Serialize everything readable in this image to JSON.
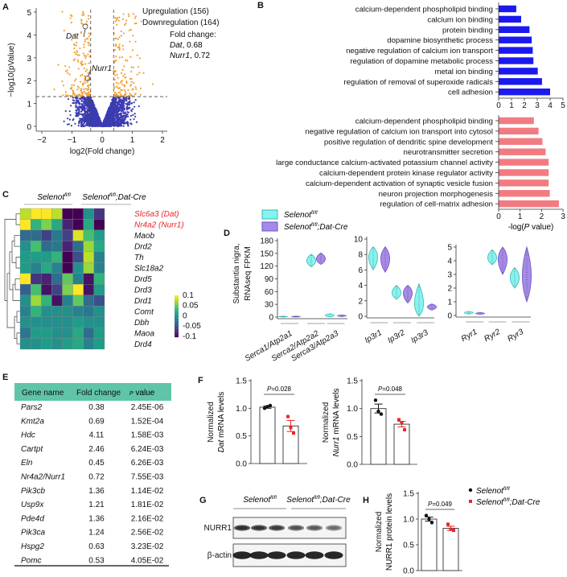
{
  "panel_labels": {
    "A": "A",
    "B": "B",
    "C": "C",
    "D": "D",
    "E": "E",
    "F": "F",
    "G": "G",
    "H": "H"
  },
  "genotypes": {
    "name": "Selenot",
    "sup": "fl/fl",
    "suffix": ";Dat-Cre"
  },
  "colors": {
    "orange": "#f5a030",
    "navy": "#3b3bb3",
    "blue_bar": "#1a1aee",
    "red_bar": "#f27b82",
    "highlight": "#e8262a",
    "cyan": "#86f3ee",
    "purple": "#a58ae8",
    "table_header": "#5fc4a8",
    "ko_point": "#e8262a"
  },
  "chart_data": [
    {
      "panel": "A",
      "type": "scatter",
      "xlabel": "log2(Fold change)",
      "ylabel": "−log10(pValue)",
      "xlim": [
        -2.2,
        2.2
      ],
      "ylim": [
        0,
        5.2
      ],
      "xtick_values": [
        -2,
        -1,
        0,
        1,
        2
      ],
      "xtick_labels": [
        "−2",
        "−1",
        "0",
        "1",
        "2"
      ],
      "ytick_values": [
        0,
        1,
        2,
        3,
        4,
        5
      ],
      "ytick_labels": [
        "0",
        "1",
        "2",
        "3",
        "4",
        "5"
      ],
      "thresholds": {
        "log2fc": [
          -0.38,
          0.38
        ],
        "neglog10p": 1.3
      },
      "legend": [
        "Upregulation (156)",
        "Downregulation (164)"
      ],
      "counts": {
        "up": 156,
        "down": 164
      },
      "fold_change_title": "Fold change:",
      "annotations": [
        {
          "gene": "Dat",
          "value": ", 0.68",
          "x": -0.56,
          "y": 4.37
        },
        {
          "gene": "Nurr1",
          "value": ", 0.72",
          "x": -0.48,
          "y": 2.1
        }
      ]
    },
    {
      "panel": "B-up",
      "type": "bar",
      "orientation": "horizontal",
      "categories": [
        "calcium-dependent phospholipid binding",
        "calcium ion binding",
        "protein binding",
        "dopamine biosynthetic process",
        "negative regulation of calcium ion transport",
        "regulation of dopamine metabolic process",
        "metal ion binding",
        "regulation of removal of superoxide radicals",
        "cell adhesion"
      ],
      "values": [
        1.37,
        1.75,
        2.4,
        2.57,
        2.65,
        2.7,
        3.04,
        3.37,
        4.0
      ],
      "xlim": [
        0,
        5
      ],
      "xtick_values": [
        0,
        1,
        2,
        3,
        4,
        5
      ],
      "xtick_labels": [
        "0",
        "1",
        "2",
        "3",
        "4",
        "5"
      ]
    },
    {
      "panel": "B-down",
      "type": "bar",
      "orientation": "horizontal",
      "categories": [
        "calcium-dependent phospholipid binding",
        "negative regulation of calcium ion transport into cytosol",
        "positive regulation of dendritic spine development",
        "neurotransmitter secretion",
        "large conductance calcium-activated potassium channel activity",
        "calcium-dependent protein kinase regulator activity",
        "calcium-dependent activation of synaptic vesicle fusion",
        "neuron projection morphogenesis",
        "regulation of cell-matrix adhesion"
      ],
      "values": [
        1.64,
        1.86,
        2.04,
        2.19,
        2.33,
        2.33,
        2.33,
        2.38,
        2.81
      ],
      "xlim": [
        0,
        3
      ],
      "xtick_values": [
        0,
        1,
        2,
        3
      ],
      "xtick_labels": [
        "0",
        "1",
        "2",
        "3"
      ],
      "xlabel_pre": "-log(",
      "xlabel_italic": "P",
      "xlabel_post": " value)"
    },
    {
      "panel": "C",
      "type": "heatmap",
      "rows": [
        "Slc6a3 (Dat)",
        "Nr4a2 (Nurr1)",
        "Maob",
        "Drd2",
        "Th",
        "Slc18a2",
        "Drd5",
        "Drd3",
        "Drd1",
        "Comt",
        "Dbh",
        "Maoa",
        "Drd4"
      ],
      "highlight_rows": [
        0,
        1
      ],
      "column_groups": [
        "Selenot fl/fl",
        "Selenot fl/fl;Dat-Cre"
      ],
      "values": [
        [
          0.08,
          0.1,
          0.1,
          0.08,
          -0.1,
          -0.1,
          0.0,
          -0.07
        ],
        [
          0.1,
          0.03,
          0.06,
          0.02,
          -0.08,
          -0.1,
          0.02,
          -0.1
        ],
        [
          -0.03,
          -0.03,
          -0.06,
          -0.02,
          -0.06,
          0.09,
          0.04,
          0.01
        ],
        [
          0.0,
          0.04,
          -0.03,
          -0.02,
          -0.08,
          -0.03,
          0.07,
          0.02
        ],
        [
          0.01,
          0.01,
          0.01,
          0.03,
          -0.1,
          -0.05,
          0.08,
          -0.01
        ],
        [
          0.01,
          -0.01,
          0.02,
          -0.01,
          -0.1,
          0.0,
          0.07,
          -0.01
        ],
        [
          0.1,
          -0.07,
          -0.08,
          -0.03,
          0.05,
          -0.01,
          -0.09,
          0.03
        ],
        [
          -0.04,
          0.04,
          -0.09,
          -0.06,
          0.06,
          0.1,
          -0.09,
          0.01
        ],
        [
          0.0,
          0.07,
          0.03,
          -0.09,
          -0.01,
          0.05,
          -0.03,
          -0.05
        ],
        [
          -0.01,
          0.03,
          0.0,
          0.0,
          0.0,
          -0.01,
          -0.02,
          0.0
        ],
        [
          0.0,
          0.0,
          0.0,
          0.0,
          0.0,
          0.01,
          0.0,
          0.0
        ],
        [
          -0.02,
          0.01,
          0.01,
          0.0,
          0.0,
          0.02,
          -0.03,
          0.01
        ],
        [
          0.0,
          0.0,
          0.01,
          0.0,
          0.01,
          0.02,
          -0.01,
          0.01
        ]
      ],
      "colorbar": {
        "min": -0.1,
        "max": 0.1,
        "tick_labels": [
          "0.1",
          "0.05",
          "0",
          "-0.05",
          "-0.1"
        ]
      }
    },
    {
      "panel": "D1",
      "type": "violin",
      "ylabel_lines": [
        "Substantia nigra,",
        "RNAseq FPKM"
      ],
      "categories": [
        "Serca1/Atp2a1",
        "Serca2/Atp2a2",
        "Serca3/Atp2a3"
      ],
      "ylim": [
        0,
        180
      ],
      "ytick_values": [
        0,
        30,
        60,
        90,
        120,
        150,
        180
      ],
      "ytick_labels": [
        "0",
        "30",
        "60",
        "90",
        "120",
        "150",
        "180"
      ],
      "series": [
        {
          "name": "Selenot fl/fl",
          "median": [
            1,
            133,
            4
          ],
          "min": [
            0,
            118,
            0
          ],
          "max": [
            2,
            148,
            8
          ]
        },
        {
          "name": "Selenot fl/fl;Dat-Cre",
          "median": [
            1,
            137,
            3
          ],
          "min": [
            0,
            124,
            1
          ],
          "max": [
            2,
            151,
            5
          ]
        }
      ]
    },
    {
      "panel": "D2",
      "type": "violin",
      "categories": [
        "Ip3r1",
        "Ip3r2",
        "Ip3r3"
      ],
      "ylim": [
        0,
        10
      ],
      "ytick_values": [
        0,
        2,
        4,
        6,
        8,
        10
      ],
      "ytick_labels": [
        "0",
        "2",
        "4",
        "6",
        "8",
        "10"
      ],
      "series": [
        {
          "name": "Selenot fl/fl",
          "median": [
            7.8,
            3.0,
            1.3
          ],
          "min": [
            6.0,
            2.2,
            0
          ],
          "max": [
            9.0,
            4.0,
            4.2
          ]
        },
        {
          "name": "Selenot fl/fl;Dat-Cre",
          "median": [
            7.5,
            3.1,
            1.2
          ],
          "min": [
            5.7,
            1.7,
            0.8
          ],
          "max": [
            9.0,
            4.0,
            1.6
          ]
        }
      ]
    },
    {
      "panel": "D3",
      "type": "violin",
      "categories": [
        "Ryr1",
        "Ryr2",
        "Ryr3"
      ],
      "ylim": [
        0,
        5
      ],
      "ytick_values": [
        0,
        1,
        2,
        3,
        4,
        5
      ],
      "ytick_labels": [
        "0",
        "1",
        "2",
        "3",
        "4",
        "5"
      ],
      "series": [
        {
          "name": "Selenot fl/fl",
          "median": [
            0.2,
            4.2,
            2.8
          ],
          "min": [
            0.1,
            3.7,
            2.0
          ],
          "max": [
            0.3,
            4.8,
            3.5
          ]
        },
        {
          "name": "Selenot fl/fl;Dat-Cre",
          "median": [
            0.15,
            4.2,
            2.8
          ],
          "min": [
            0.08,
            3.0,
            1.0
          ],
          "max": [
            0.22,
            5.0,
            5.0
          ]
        }
      ]
    },
    {
      "panel": "E",
      "type": "table",
      "headers": [
        "Gene name",
        "Fold change",
        "value"
      ],
      "header_p": "P",
      "rows": [
        [
          "Pars2",
          "0.38",
          "2.45E-06"
        ],
        [
          "Kmt2a",
          "0.69",
          "1.52E-04"
        ],
        [
          "Hdc",
          "4.11",
          "1.58E-03"
        ],
        [
          "Cartpt",
          "2.46",
          "6.24E-03"
        ],
        [
          "Eln",
          "0.45",
          "6.26E-03"
        ],
        [
          "Nr4a2/Nurr1",
          "0.72",
          "7.55E-03"
        ],
        [
          "Pik3cb",
          "1.36",
          "1.14E-02"
        ],
        [
          "Usp9x",
          "1.21",
          "1.81E-02"
        ],
        [
          "Pde4d",
          "1.36",
          "2.16E-02"
        ],
        [
          "Pik3ca",
          "1.24",
          "2.56E-02"
        ],
        [
          "Hspg2",
          "0.63",
          "3.23E-02"
        ],
        [
          "Pomc",
          "0.53",
          "4.05E-02"
        ]
      ]
    },
    {
      "panel": "F1",
      "type": "bar",
      "categories": [
        "Selenot fl/fl",
        "Selenot fl/fl;Dat-Cre"
      ],
      "means": [
        1.02,
        0.68
      ],
      "sem": [
        0.02,
        0.1
      ],
      "points": [
        [
          1.0,
          1.03,
          1.05
        ],
        [
          0.85,
          0.65,
          0.55
        ]
      ],
      "ylim": [
        0,
        1.5
      ],
      "ytick_values": [
        0,
        0.5,
        1,
        1.5
      ],
      "ytick_labels": [
        "0.0",
        "0.5",
        "1.0",
        "1.5"
      ],
      "ylabel_line1": "Normalized",
      "ylabel_gene": "Dat",
      "ylabel_rest": " mRNA levels",
      "p_italic": "P",
      "p_value": "=0.028"
    },
    {
      "panel": "F2",
      "type": "bar",
      "categories": [
        "Selenot fl/fl",
        "Selenot fl/fl;Dat-Cre"
      ],
      "means": [
        1.0,
        0.72
      ],
      "sem": [
        0.08,
        0.05
      ],
      "points": [
        [
          1.15,
          0.95,
          0.9
        ],
        [
          0.8,
          0.75,
          0.62
        ]
      ],
      "ylim": [
        0,
        1.5
      ],
      "ytick_values": [
        0,
        0.5,
        1,
        1.5
      ],
      "ytick_labels": [
        "0.0",
        "0.5",
        "1.0",
        "1.5"
      ],
      "ylabel_line1": "Normalized",
      "ylabel_gene": "Nurr1",
      "ylabel_rest": " mRNA levels",
      "p_italic": "P",
      "p_value": "=0.048"
    },
    {
      "panel": "H",
      "type": "bar",
      "categories": [
        "Selenot fl/fl",
        "Selenot fl/fl;Dat-Cre"
      ],
      "means": [
        1.0,
        0.82
      ],
      "sem": [
        0.04,
        0.04
      ],
      "points": [
        [
          1.07,
          1.0,
          0.93
        ],
        [
          0.9,
          0.8,
          0.78
        ]
      ],
      "ylim": [
        0,
        1.5
      ],
      "ytick_values": [
        0,
        0.5,
        1,
        1.5
      ],
      "ytick_labels": [
        "0.0",
        "0.5",
        "1.0",
        "1.5"
      ],
      "ylabel_line1": "Normalized",
      "ylabel_gene": "",
      "ylabel_rest": "NURR1 protein levels",
      "p_italic": "P",
      "p_value": "=0.049"
    }
  ],
  "blot": {
    "row_labels": [
      "NURR1",
      "β-actin"
    ],
    "nurr1_intensity": [
      0.95,
      0.9,
      0.85,
      0.7,
      0.65,
      0.55
    ]
  }
}
